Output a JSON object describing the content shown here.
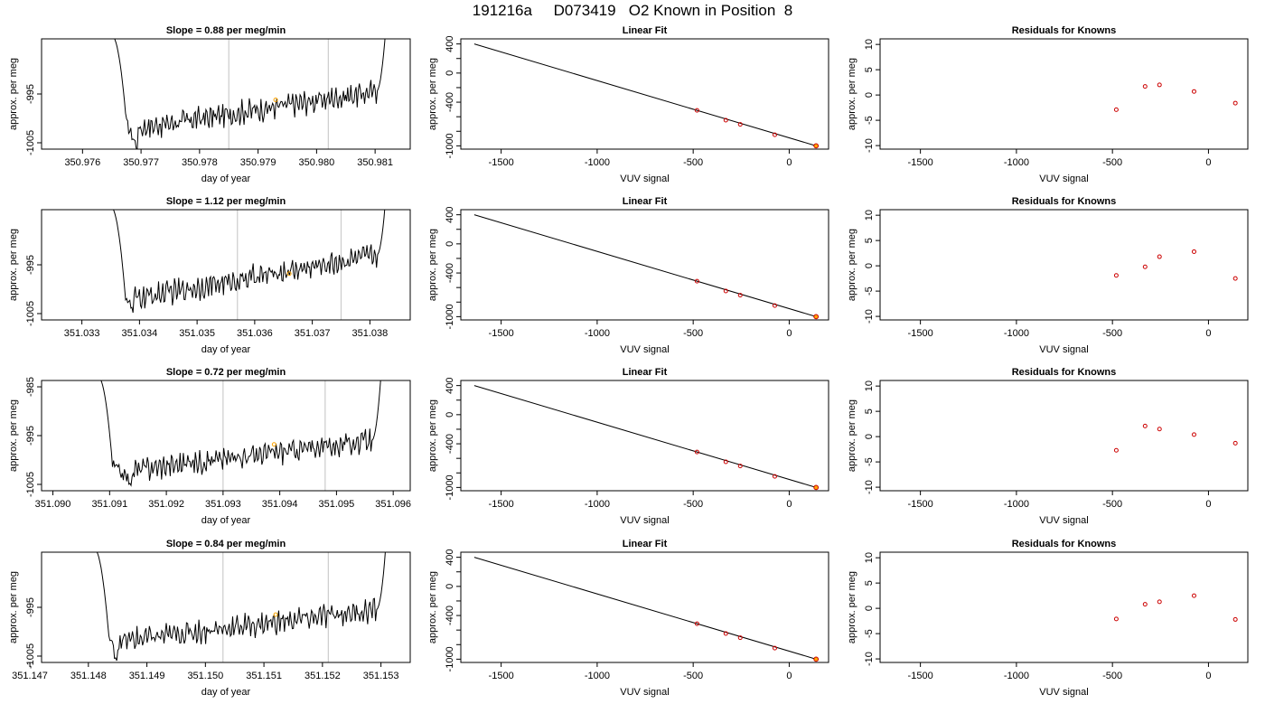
{
  "page_title": "191216a     D073419   O2 Known in Position  8",
  "colors": {
    "trace": "#000000",
    "interval_line": "#cccccc",
    "known_point": "#ffa500",
    "fit_point": "#cc0000",
    "fit_line": "#000000"
  },
  "chart_data": [
    {
      "type": "line",
      "row": 0,
      "title": "Slope =  0.88  per meg/min",
      "xlabel": "day of year",
      "ylabel": "approx. per meg",
      "xlim": [
        350.9753,
        350.9816
      ],
      "ylim": [
        -1006.3,
        -983.7
      ],
      "xticks": [
        "350.976",
        "350.977",
        "350.978",
        "350.979",
        "350.980",
        "350.981"
      ],
      "yticks": [
        -1005,
        -995
      ],
      "vlines": [
        350.9785,
        350.9802
      ],
      "marker": {
        "x": 350.9793,
        "y": -996.2
      },
      "trace_start": 350.9765,
      "trace_end": 350.9812,
      "trace_min_x": 350.97695,
      "trace_min_y": -1006.2,
      "trace_after_min": -1002.0,
      "trace_end_level": -994.5
    },
    {
      "type": "line",
      "row": 1,
      "title": "Slope =  1.12  per meg/min",
      "xlabel": "day of year",
      "ylabel": "approx. per meg",
      "xlim": [
        351.0323,
        351.0387
      ],
      "ylim": [
        -1006.3,
        -983.7
      ],
      "xticks": [
        "351.033",
        "351.034",
        "351.035",
        "351.036",
        "351.037",
        "351.038"
      ],
      "yticks": [
        -1005,
        -995
      ],
      "vlines": [
        351.0357,
        351.0375
      ],
      "marker": {
        "x": 351.0366,
        "y": -996.8
      },
      "trace_start": 351.0335,
      "trace_end": 351.0383,
      "trace_min_x": 351.0339,
      "trace_min_y": -1005.0,
      "trace_after_min": -1002.0,
      "trace_end_level": -993.0
    },
    {
      "type": "line",
      "row": 2,
      "title": "Slope =  0.72  per meg/min",
      "xlabel": "day of year",
      "ylabel": "approx. per meg",
      "xlim": [
        351.0898,
        351.0963
      ],
      "ylim": [
        -1006.3,
        -983.7
      ],
      "xticks": [
        "351.090",
        "351.091",
        "351.092",
        "351.093",
        "351.094",
        "351.095",
        "351.096"
      ],
      "yticks": [
        -1005,
        -995,
        -985
      ],
      "vlines": [
        351.093,
        351.0948
      ],
      "marker": {
        "x": 351.0939,
        "y": -996.8
      },
      "trace_start": 351.0908,
      "trace_end": 351.0958,
      "trace_min_x": 351.0914,
      "trace_min_y": -1004.5,
      "trace_after_min": -1002.0,
      "trace_end_level": -996.0
    },
    {
      "type": "line",
      "row": 3,
      "title": "Slope =  0.84  per meg/min",
      "xlabel": "day of year",
      "ylabel": "approx. per meg",
      "xlim": [
        351.1472,
        351.1535
      ],
      "ylim": [
        -1006.3,
        -983.7
      ],
      "xticks": [
        "351.147",
        "351.148",
        "351.149",
        "351.150",
        "351.151",
        "351.152",
        "351.153"
      ],
      "yticks": [
        -1005,
        -995
      ],
      "vlines": [
        351.1503,
        351.1521
      ],
      "marker": {
        "x": 351.1512,
        "y": -996.5
      },
      "trace_start": 351.1481,
      "trace_end": 351.1531,
      "trace_min_x": 351.1485,
      "trace_min_y": -1006.0,
      "trace_after_min": -1002.0,
      "trace_end_level": -995.5
    },
    {
      "type": "scatter",
      "row": 0,
      "title": "Linear Fit",
      "xlabel": "VUV signal",
      "ylabel": "approx. per meg",
      "xlim": [
        -1710,
        205
      ],
      "ylim": [
        -1045,
        470
      ],
      "xticks": [
        -1500,
        -1000,
        -500,
        0
      ],
      "yticks": [
        400,
        0,
        -400,
        -1000
      ],
      "fit_line": {
        "x": [
          -1640,
          140
        ],
        "y": [
          400,
          -1000
        ]
      },
      "points": [
        {
          "x": -480,
          "y": -513
        },
        {
          "x": -330,
          "y": -648
        },
        {
          "x": -255,
          "y": -705
        },
        {
          "x": -75,
          "y": -848
        },
        {
          "x": 140,
          "y": -1000
        }
      ]
    },
    {
      "type": "scatter",
      "row": 1,
      "title": "Linear Fit",
      "xlabel": "VUV signal",
      "ylabel": "approx. per meg",
      "xlim": [
        -1710,
        205
      ],
      "ylim": [
        -1045,
        470
      ],
      "xticks": [
        -1500,
        -1000,
        -500,
        0
      ],
      "yticks": [
        400,
        0,
        -400,
        -1000
      ],
      "fit_line": {
        "x": [
          -1640,
          140
        ],
        "y": [
          400,
          -1000
        ]
      },
      "points": [
        {
          "x": -480,
          "y": -513
        },
        {
          "x": -330,
          "y": -648
        },
        {
          "x": -255,
          "y": -705
        },
        {
          "x": -75,
          "y": -848
        },
        {
          "x": 140,
          "y": -1000
        }
      ]
    },
    {
      "type": "scatter",
      "row": 2,
      "title": "Linear Fit",
      "xlabel": "VUV signal",
      "ylabel": "approx. per meg",
      "xlim": [
        -1710,
        205
      ],
      "ylim": [
        -1045,
        470
      ],
      "xticks": [
        -1500,
        -1000,
        -500,
        0
      ],
      "yticks": [
        400,
        0,
        -400,
        -1000
      ],
      "fit_line": {
        "x": [
          -1640,
          140
        ],
        "y": [
          400,
          -1000
        ]
      },
      "points": [
        {
          "x": -480,
          "y": -513
        },
        {
          "x": -330,
          "y": -648
        },
        {
          "x": -255,
          "y": -705
        },
        {
          "x": -75,
          "y": -848
        },
        {
          "x": 140,
          "y": -1000
        }
      ]
    },
    {
      "type": "scatter",
      "row": 3,
      "title": "Linear Fit",
      "xlabel": "VUV signal",
      "ylabel": "approx. per meg",
      "xlim": [
        -1710,
        205
      ],
      "ylim": [
        -1045,
        470
      ],
      "xticks": [
        -1500,
        -1000,
        -500,
        0
      ],
      "yticks": [
        400,
        0,
        -400,
        -1000
      ],
      "fit_line": {
        "x": [
          -1640,
          140
        ],
        "y": [
          400,
          -1000
        ]
      },
      "points": [
        {
          "x": -480,
          "y": -513
        },
        {
          "x": -330,
          "y": -648
        },
        {
          "x": -255,
          "y": -705
        },
        {
          "x": -75,
          "y": -848
        },
        {
          "x": 140,
          "y": -1000
        }
      ]
    },
    {
      "type": "scatter",
      "row": 0,
      "title": "Residuals for Knowns",
      "xlabel": "VUV signal",
      "ylabel": "approx. per meg",
      "xlim": [
        -1710,
        205
      ],
      "ylim": [
        -10.7,
        11.1
      ],
      "xticks": [
        -1500,
        -1000,
        -500,
        0
      ],
      "yticks": [
        10,
        5,
        0,
        -5,
        -10
      ],
      "points": [
        {
          "x": -480,
          "y": -2.9
        },
        {
          "x": -330,
          "y": 1.7
        },
        {
          "x": -255,
          "y": 2.0
        },
        {
          "x": -75,
          "y": 0.7
        },
        {
          "x": 140,
          "y": -1.6
        }
      ]
    },
    {
      "type": "scatter",
      "row": 1,
      "title": "Residuals for Knowns",
      "xlabel": "VUV signal",
      "ylabel": "approx. per meg",
      "xlim": [
        -1710,
        205
      ],
      "ylim": [
        -10.7,
        11.1
      ],
      "xticks": [
        -1500,
        -1000,
        -500,
        0
      ],
      "yticks": [
        10,
        5,
        0,
        -5,
        -10
      ],
      "points": [
        {
          "x": -480,
          "y": -1.9
        },
        {
          "x": -330,
          "y": -0.2
        },
        {
          "x": -255,
          "y": 1.8
        },
        {
          "x": -75,
          "y": 2.8
        },
        {
          "x": 140,
          "y": -2.5
        }
      ]
    },
    {
      "type": "scatter",
      "row": 2,
      "title": "Residuals for Knowns",
      "xlabel": "VUV signal",
      "ylabel": "approx. per meg",
      "xlim": [
        -1710,
        205
      ],
      "ylim": [
        -10.7,
        11.1
      ],
      "xticks": [
        -1500,
        -1000,
        -500,
        0
      ],
      "yticks": [
        10,
        5,
        0,
        -5,
        -10
      ],
      "points": [
        {
          "x": -480,
          "y": -2.7
        },
        {
          "x": -330,
          "y": 2.1
        },
        {
          "x": -255,
          "y": 1.5
        },
        {
          "x": -75,
          "y": 0.4
        },
        {
          "x": 140,
          "y": -1.3
        }
      ]
    },
    {
      "type": "scatter",
      "row": 3,
      "title": "Residuals for Knowns",
      "xlabel": "VUV signal",
      "ylabel": "approx. per meg",
      "xlim": [
        -1710,
        205
      ],
      "ylim": [
        -10.7,
        11.1
      ],
      "xticks": [
        -1500,
        -1000,
        -500,
        0
      ],
      "yticks": [
        10,
        5,
        0,
        -5,
        -10
      ],
      "points": [
        {
          "x": -480,
          "y": -2.1
        },
        {
          "x": -330,
          "y": 0.8
        },
        {
          "x": -255,
          "y": 1.3
        },
        {
          "x": -75,
          "y": 2.5
        },
        {
          "x": 140,
          "y": -2.2
        }
      ]
    }
  ]
}
